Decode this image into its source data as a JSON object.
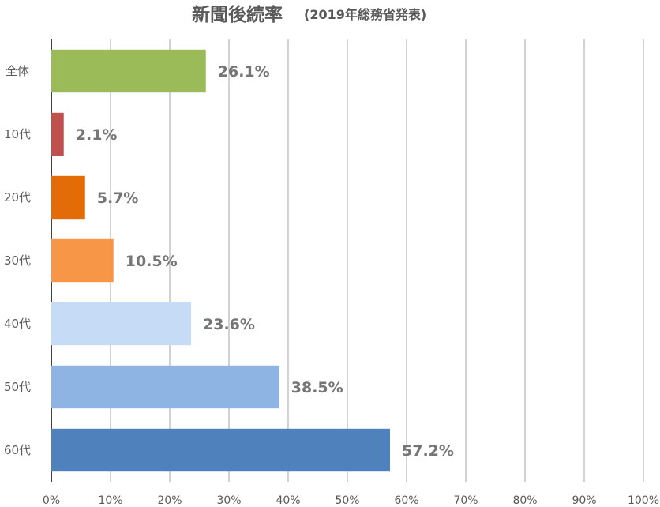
{
  "chart_data": {
    "type": "bar",
    "orientation": "horizontal",
    "title": "新聞後続率",
    "subtitle": "(2019年総務省発表)",
    "categories": [
      "全体",
      "10代",
      "20代",
      "30代",
      "40代",
      "50代",
      "60代"
    ],
    "values": [
      26.1,
      2.1,
      5.7,
      10.5,
      23.6,
      38.5,
      57.2
    ],
    "value_labels": [
      "26.1%",
      "2.1%",
      "5.7%",
      "10.5%",
      "23.6%",
      "38.5%",
      "57.2%"
    ],
    "colors": [
      "#9BBB59",
      "#C0504D",
      "#E36C09",
      "#F79646",
      "#C6DCF6",
      "#8DB4E2",
      "#4F81BD"
    ],
    "x_ticks": [
      "0%",
      "10%",
      "20%",
      "30%",
      "40%",
      "50%",
      "60%",
      "70%",
      "80%",
      "90%",
      "100%"
    ],
    "xlim": [
      0,
      100
    ],
    "grid": true,
    "legend": false
  }
}
